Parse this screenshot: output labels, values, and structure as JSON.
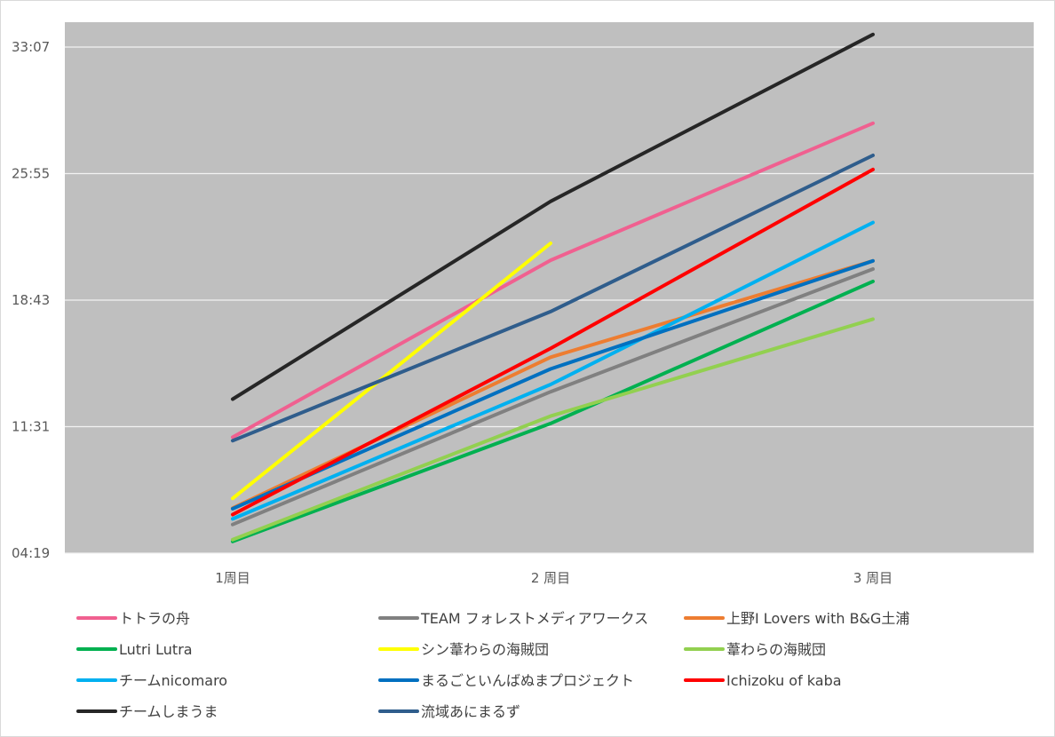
{
  "chart_data": {
    "type": "line",
    "title": "",
    "xlabel": "",
    "ylabel": "",
    "categories": [
      "1周目",
      "2 周目",
      "3 周目"
    ],
    "y_ticks": [
      "04:19",
      "11:31",
      "18:43",
      "25:55",
      "33:07"
    ],
    "ylim_seconds": [
      259,
      1987
    ],
    "y_tick_seconds": [
      259,
      691,
      1123,
      1555,
      1987
    ],
    "grid": true,
    "legend_position": "bottom",
    "plot_background": "#bfbfbf",
    "series": [
      {
        "name": "トトラの舟",
        "color": "#f06090",
        "values": [
          655,
          1259,
          1727
        ]
      },
      {
        "name": "TEAM フォレストメディアワークス",
        "color": "#808080",
        "values": [
          357,
          810,
          1229
        ]
      },
      {
        "name": "上野I Lovers with B&G土浦",
        "color": "#ed7d31",
        "values": [
          413,
          928,
          1257
        ]
      },
      {
        "name": "Lutri Lutra",
        "color": "#00b050",
        "values": [
          299,
          702,
          1187
        ]
      },
      {
        "name": "シン葦わらの海賊団",
        "color": "#ffff00",
        "values": [
          446,
          1317,
          null
        ]
      },
      {
        "name": "葦わらの海賊団",
        "color": "#92d050",
        "values": [
          305,
          727,
          1058
        ]
      },
      {
        "name": "チームnicomaro",
        "color": "#00b0f0",
        "values": [
          376,
          835,
          1388
        ]
      },
      {
        "name": "まるごといんばぬまプロジェクト",
        "color": "#0070c0",
        "values": [
          411,
          888,
          1257
        ]
      },
      {
        "name": "Ichizoku of kaba",
        "color": "#ff0000",
        "values": [
          391,
          958,
          1569
        ]
      },
      {
        "name": "チームしまうま",
        "color": "#262626",
        "values": [
          785,
          1460,
          2030
        ]
      },
      {
        "name": "流域あにまるず",
        "color": "#2f5d8c",
        "values": [
          643,
          1084,
          1617
        ]
      }
    ]
  }
}
